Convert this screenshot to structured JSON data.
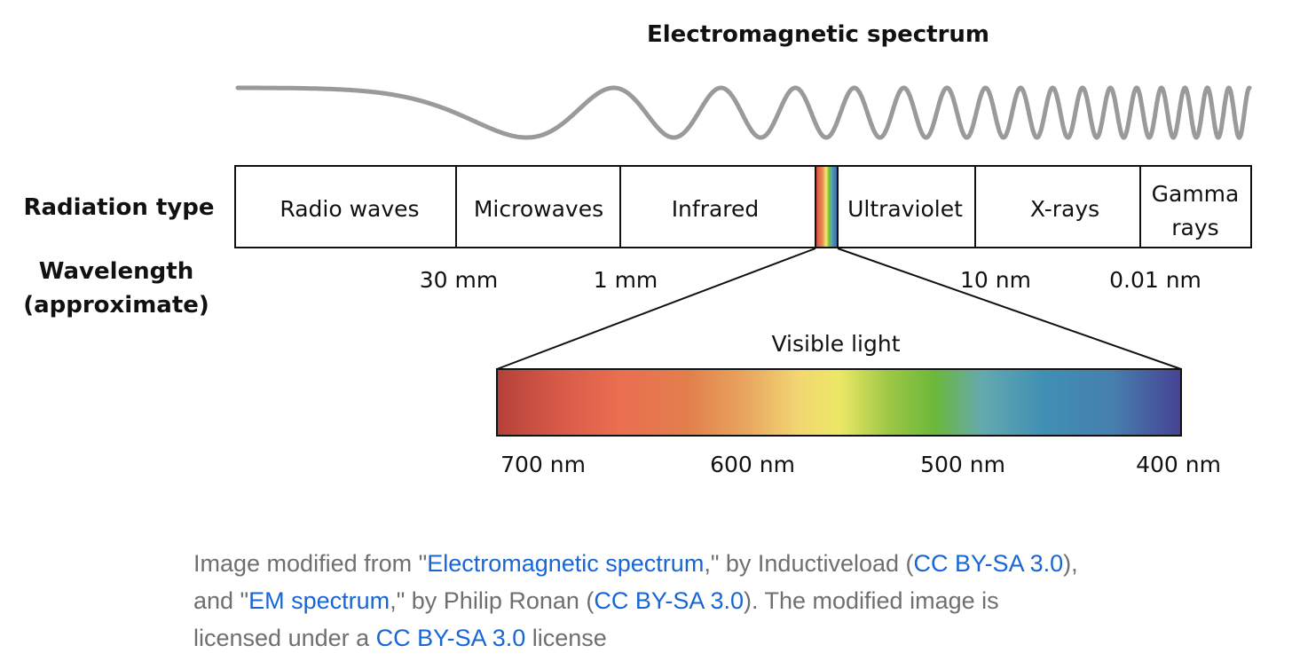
{
  "diagram": {
    "title": "Electromagnetic spectrum",
    "row_labels": {
      "radiation_type": "Radiation type",
      "wavelength_line1": "Wavelength",
      "wavelength_line2": "(approximate)"
    },
    "bands": [
      {
        "key": "radio",
        "lines": [
          "Radio waves"
        ]
      },
      {
        "key": "microwaves",
        "lines": [
          "Microwaves"
        ]
      },
      {
        "key": "infrared",
        "lines": [
          "Infrared"
        ]
      },
      {
        "key": "ultraviolet",
        "lines": [
          "Ultraviolet"
        ]
      },
      {
        "key": "x-rays",
        "lines": [
          "X-rays"
        ]
      },
      {
        "key": "gamma",
        "lines": [
          "Gamma",
          "rays"
        ]
      }
    ],
    "wavelength_labels": [
      "30 mm",
      "1 mm",
      "10 nm",
      "0.01 nm"
    ],
    "visible": {
      "title": "Visible light",
      "ticks": [
        "700 nm",
        "600 nm",
        "500 nm",
        "400 nm"
      ]
    },
    "colors": {
      "wave": "#9a9a9a",
      "outline": "#111111",
      "gradient_stops": [
        "#b5403a",
        "#d75a48",
        "#ea6e50",
        "#e27f4c",
        "#e9a960",
        "#f2d672",
        "#ede867",
        "#9fc845",
        "#6bb83a",
        "#64a9b0",
        "#3f8fb4",
        "#467fae",
        "#474295"
      ]
    }
  },
  "caption": {
    "t1": "Image modified from \"",
    "link1": "Electromagnetic spectrum",
    "t2": ",\" by Inductiveload (",
    "link2": "CC BY-SA 3.0",
    "t3": "), and \"",
    "link3": "EM spectrum",
    "t4": ",\" by Philip Ronan (",
    "link4": "CC BY-SA 3.0",
    "t5": "). The modified image is licensed under a ",
    "link5": "CC BY-SA 3.0",
    "t6": " license"
  }
}
